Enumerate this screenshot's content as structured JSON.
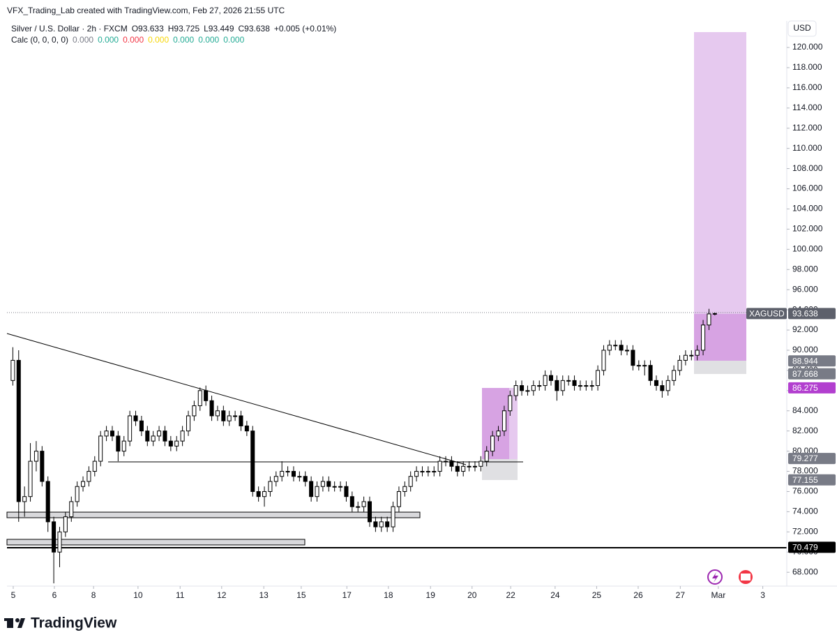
{
  "chart_data": {
    "type": "candlestick",
    "header": "VFX_Trading_Lab created with TradingView.com, Feb 27, 2026 21:55 UTC",
    "symbol": "Silver / U.S. Dollar · 2h · FXCM",
    "ohlc_text": [
      "O93.633",
      "H93.725",
      "L93.449",
      "C93.638",
      "+0.005 (+0.01%)"
    ],
    "indicator": "Calc (0, 0, 0, 0)",
    "indicator_values": [
      {
        "label": "0.000",
        "color": "#787b86"
      },
      {
        "label": "0.000",
        "color": "#22ab94"
      },
      {
        "label": "0.000",
        "color": "#f23645"
      },
      {
        "label": "0.000",
        "color": "#f7d70a"
      },
      {
        "label": "0.000",
        "color": "#22ab94"
      },
      {
        "label": "0.000",
        "color": "#22ab94"
      },
      {
        "label": "0.000",
        "color": "#22ab94"
      }
    ],
    "currency": "USD",
    "brand": "TradingView",
    "up_color": "#ffffff",
    "down_color": "#000000",
    "border_color": "#000000",
    "open": [
      87,
      89,
      75,
      75.5,
      79,
      80,
      77,
      73,
      70,
      72,
      73.5,
      75,
      76.5,
      77,
      78,
      79,
      81.5,
      82,
      81.5,
      80,
      81,
      83.5,
      83,
      82,
      81,
      81.5,
      82,
      81,
      80.5,
      81,
      82,
      83.5,
      84.5,
      86,
      85,
      83.5,
      84,
      83,
      83.5,
      83.5,
      82.5,
      82,
      76,
      75.5,
      76,
      77,
      77.5,
      78,
      78,
      77.5,
      77.5,
      77,
      75.5,
      76.5,
      77,
      76.5,
      76.5,
      76.5,
      75.5,
      74.5,
      74.5,
      75,
      73,
      72.5,
      73,
      72.5,
      74.5,
      76,
      76.5,
      77.5,
      78,
      78,
      78,
      78,
      79,
      79,
      78.5,
      78,
      78.5,
      78.5,
      78.5,
      79,
      80,
      81.5,
      82,
      84,
      85.5,
      86.5,
      86,
      86,
      86.5,
      86.5,
      87.5,
      87,
      86,
      87,
      87,
      86.5,
      86.5,
      86.5,
      86.5,
      88,
      90,
      90.5,
      90.5,
      90,
      90,
      88.5,
      88.5,
      88.5,
      87,
      86.5,
      86,
      87,
      88,
      89,
      89.5,
      89.5,
      90,
      92.5,
      93.633
    ],
    "high": [
      90.3,
      90,
      76.5,
      80.8,
      81,
      80.5,
      77.5,
      73.5,
      72.5,
      74,
      75.5,
      77,
      77.5,
      78.5,
      79.5,
      82,
      82.5,
      82.5,
      82,
      81.5,
      84,
      84,
      83.5,
      82.5,
      82,
      82.5,
      82.5,
      81.5,
      81.5,
      82.5,
      84,
      85,
      86.3,
      86.5,
      85.5,
      84.5,
      84.5,
      84,
      84,
      84,
      83,
      82.5,
      76.5,
      76.5,
      77.5,
      78,
      79,
      78.5,
      78.5,
      78,
      78,
      77.5,
      77,
      77.5,
      77.5,
      77,
      77,
      77,
      76,
      75,
      75.5,
      75.5,
      73.5,
      73.5,
      73.5,
      75,
      76.5,
      77,
      78,
      78.5,
      78.5,
      78.5,
      78.5,
      79.5,
      79.5,
      79.5,
      79,
      79,
      79,
      79,
      79.5,
      80.5,
      82,
      82.5,
      84.5,
      86,
      87,
      87,
      86.5,
      87,
      87,
      88,
      88,
      87.5,
      87.5,
      87.5,
      87.5,
      87,
      87,
      87,
      88.5,
      90.5,
      91,
      91,
      91,
      90.5,
      90.5,
      89,
      89,
      89,
      87.5,
      87,
      87.5,
      88.5,
      89.5,
      90,
      90,
      90.5,
      93,
      94.1,
      93.725
    ],
    "low": [
      86.5,
      73,
      73.5,
      75,
      78,
      76.5,
      72,
      66.9,
      68.5,
      71.5,
      73,
      74.5,
      76,
      76.5,
      77.5,
      78.5,
      81,
      81,
      79,
      79.5,
      80.5,
      82.5,
      81.5,
      80.5,
      80.5,
      81,
      80.5,
      80,
      80,
      80.5,
      81.5,
      83,
      84,
      84.5,
      83,
      83,
      82.5,
      82.5,
      83,
      82,
      81.5,
      75.5,
      75,
      74.5,
      75.5,
      76.5,
      77,
      77.5,
      77,
      77,
      76.5,
      75,
      75,
      76,
      76,
      76,
      76,
      75,
      74,
      74,
      74,
      72.5,
      72,
      72,
      72,
      72,
      74,
      75.5,
      76,
      77,
      77.5,
      77.5,
      77.5,
      77.5,
      78.5,
      78,
      77.5,
      77.5,
      78,
      78,
      78,
      78.5,
      79.5,
      81,
      81.5,
      83.5,
      85,
      85.5,
      85.5,
      85.5,
      86,
      86,
      86.5,
      85,
      85.5,
      86.5,
      86,
      86,
      86,
      86,
      86,
      87.5,
      89.5,
      90,
      89.5,
      89.5,
      88,
      88,
      87.5,
      86.5,
      86,
      85.3,
      85.5,
      86.5,
      87.5,
      88.5,
      89,
      89,
      89.5,
      92,
      93.449
    ],
    "close": [
      89,
      75,
      75.5,
      79,
      80,
      77,
      73,
      70,
      72,
      73.5,
      75,
      76.5,
      77,
      78,
      79,
      81.5,
      82,
      81.5,
      80,
      81,
      83.5,
      83,
      82,
      81,
      81.5,
      82,
      81,
      80.5,
      81,
      82,
      83.5,
      84.5,
      86,
      85,
      83.5,
      84,
      83,
      83.5,
      83.5,
      82.5,
      82,
      76,
      75.5,
      76,
      77,
      77.5,
      78,
      78,
      77.5,
      77.5,
      77,
      75.5,
      76.5,
      77,
      76.5,
      76.5,
      76.5,
      75.5,
      74.5,
      74.5,
      75,
      73,
      72.5,
      73,
      72.5,
      74.5,
      76,
      76.5,
      77.5,
      78,
      78,
      78,
      78,
      79,
      79,
      78.5,
      78,
      78.5,
      78.5,
      78.5,
      79,
      80,
      81.5,
      82,
      84,
      85.5,
      86.5,
      86,
      86,
      86.5,
      86.5,
      87.5,
      87,
      86,
      87,
      87,
      86.5,
      86.5,
      86.5,
      86.5,
      88,
      90,
      90.5,
      90.5,
      90,
      90,
      88.5,
      88.5,
      88.5,
      87,
      86.5,
      86,
      87,
      88,
      89,
      89.5,
      89.5,
      90,
      92.5,
      93.6,
      93.638
    ],
    "xlim": [
      -1,
      132.3
    ],
    "xticks": [
      {
        "value": 0.07,
        "label": "5"
      },
      {
        "value": 7.1,
        "label": "6"
      },
      {
        "value": 13.8,
        "label": "8"
      },
      {
        "value": 21.4,
        "label": "10"
      },
      {
        "value": 28.6,
        "label": "11"
      },
      {
        "value": 35.7,
        "label": "12"
      },
      {
        "value": 42.9,
        "label": "13"
      },
      {
        "value": 49.3,
        "label": "15"
      },
      {
        "value": 57.1,
        "label": "17"
      },
      {
        "value": 64.2,
        "label": "18"
      },
      {
        "value": 71.4,
        "label": "19"
      },
      {
        "value": 78.5,
        "label": "20"
      },
      {
        "value": 85.1,
        "label": "22"
      },
      {
        "value": 92.7,
        "label": "24"
      },
      {
        "value": 99.8,
        "label": "25"
      },
      {
        "value": 106.9,
        "label": "26"
      },
      {
        "value": 114.1,
        "label": "27"
      },
      {
        "value": 120.6,
        "label": "Mar"
      },
      {
        "value": 128.2,
        "label": "3"
      }
    ],
    "ylim": [
      66.63,
      122.63
    ],
    "yticks": [
      {
        "value": 68,
        "label": "68.000"
      },
      {
        "value": 70,
        "label": "70.000"
      },
      {
        "value": 72,
        "label": "72.000"
      },
      {
        "value": 74,
        "label": "74.000"
      },
      {
        "value": 76,
        "label": "76.000"
      },
      {
        "value": 78,
        "label": "78.000"
      },
      {
        "value": 80,
        "label": "80.000"
      },
      {
        "value": 82,
        "label": "82.000"
      },
      {
        "value": 84,
        "label": "84.000"
      },
      {
        "value": 86,
        "label": "86.000"
      },
      {
        "value": 88,
        "label": "88.000"
      },
      {
        "value": 90,
        "label": "90.000"
      },
      {
        "value": 92,
        "label": "92.000"
      },
      {
        "value": 94,
        "label": "94.000"
      },
      {
        "value": 96,
        "label": "96.000"
      },
      {
        "value": 98,
        "label": "98.000"
      },
      {
        "value": 100,
        "label": "100.000"
      },
      {
        "value": 102,
        "label": "102.000"
      },
      {
        "value": 104,
        "label": "104.000"
      },
      {
        "value": 106,
        "label": "106.000"
      },
      {
        "value": 108,
        "label": "108.000"
      },
      {
        "value": 110,
        "label": "110.000"
      },
      {
        "value": 112,
        "label": "112.000"
      },
      {
        "value": 114,
        "label": "114.000"
      },
      {
        "value": 116,
        "label": "116.000"
      },
      {
        "value": 118,
        "label": "118.000"
      },
      {
        "value": 120,
        "label": "120.000"
      }
    ],
    "grid": false,
    "price_labels": [
      {
        "value": 93.638,
        "tag": "XAGUSD",
        "color": "#5d606b"
      },
      {
        "value": 88.944,
        "color": "#787b86"
      },
      {
        "value": 87.668,
        "color": "#787b86"
      },
      {
        "value": 86.275,
        "color": "#b23fcf"
      },
      {
        "value": 79.277,
        "color": "#787b86"
      },
      {
        "value": 77.155,
        "color": "#787b86"
      },
      {
        "value": 70.479,
        "color": "#000000"
      }
    ]
  }
}
